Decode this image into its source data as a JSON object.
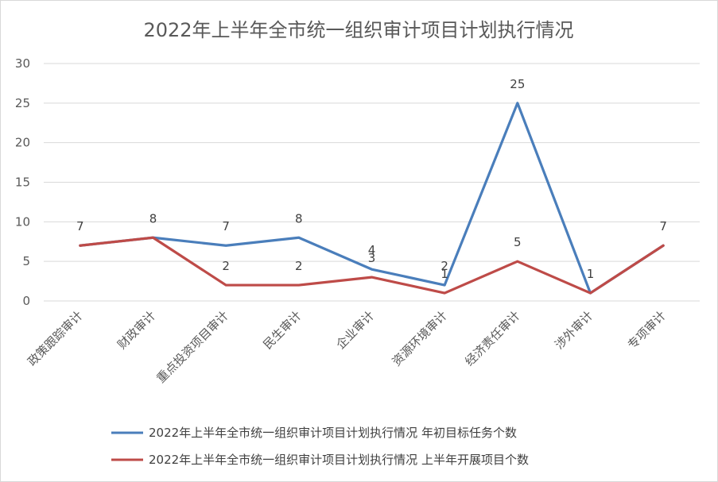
{
  "chart_data": {
    "type": "line",
    "title": "2022年上半年全市统一组织审计项目计划执行情况",
    "categories": [
      "政策跟踪审计",
      "财政审计",
      "重点投资项目审计",
      "民生审计",
      "企业审计",
      "资源环境审计",
      "经济责任审计",
      "涉外审计",
      "专项审计"
    ],
    "series": [
      {
        "name": "2022年上半年全市统一组织审计项目计划执行情况 年初目标任务个数",
        "values": [
          7,
          8,
          7,
          8,
          4,
          2,
          25,
          1,
          7
        ],
        "color": "#4a7ebb"
      },
      {
        "name": "2022年上半年全市统一组织审计项目计划执行情况 上半年开展项目个数",
        "values": [
          7,
          8,
          2,
          2,
          3,
          1,
          5,
          1,
          7
        ],
        "color": "#be4b48"
      }
    ],
    "ylim": [
      0,
      30
    ],
    "yticks": [
      0,
      5,
      10,
      15,
      20,
      25,
      30
    ],
    "grid": true,
    "legend_position": "bottom"
  }
}
